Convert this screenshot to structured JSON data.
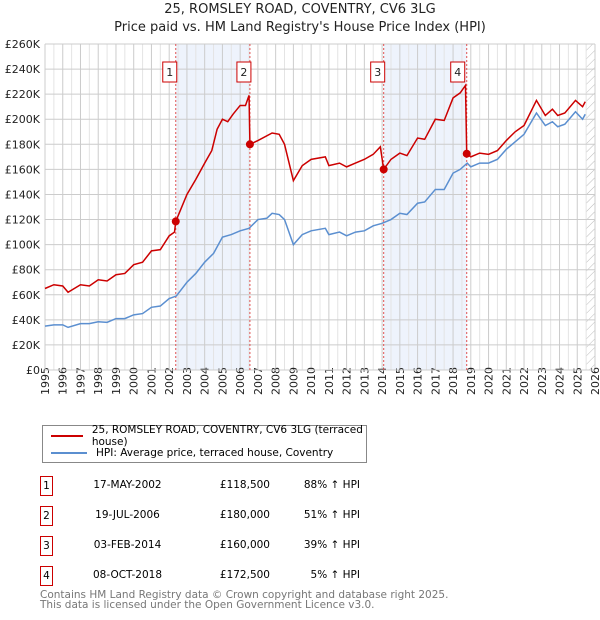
{
  "chart_data": {
    "type": "line",
    "title": "25, ROMSLEY ROAD, COVENTRY, CV6 3LG",
    "subtitle": "Price paid vs. HM Land Registry's House Price Index (HPI)",
    "xlim": [
      1995,
      2026
    ],
    "ylim": [
      0,
      260000
    ],
    "x_ticks": [
      "1995",
      "1996",
      "1997",
      "1998",
      "1999",
      "2000",
      "2001",
      "2002",
      "2003",
      "2004",
      "2005",
      "2006",
      "2007",
      "2008",
      "2009",
      "2010",
      "2011",
      "2012",
      "2013",
      "2014",
      "2015",
      "2016",
      "2017",
      "2018",
      "2019",
      "2020",
      "2021",
      "2022",
      "2023",
      "2024",
      "2025",
      "2026"
    ],
    "y_ticks": [
      "£0",
      "£20K",
      "£40K",
      "£60K",
      "£80K",
      "£100K",
      "£120K",
      "£140K",
      "£160K",
      "£180K",
      "£200K",
      "£220K",
      "£240K",
      "£260K"
    ],
    "grid": true,
    "series": [
      {
        "name": "25, ROMSLEY ROAD, COVENTRY, CV6 3LG (terraced house)",
        "color": "#cc0000",
        "points": [
          [
            1995,
            65
          ],
          [
            1995.5,
            68
          ],
          [
            1996,
            67
          ],
          [
            1996.3,
            62
          ],
          [
            1997,
            68
          ],
          [
            1997.5,
            67
          ],
          [
            1998,
            72
          ],
          [
            1998.5,
            71
          ],
          [
            1999,
            76
          ],
          [
            1999.5,
            77
          ],
          [
            2000,
            84
          ],
          [
            2000.5,
            86
          ],
          [
            2001,
            95
          ],
          [
            2001.5,
            96
          ],
          [
            2002,
            107
          ],
          [
            2002.3,
            110
          ],
          [
            2002.37,
            118.5
          ],
          [
            2003,
            140
          ],
          [
            2003.5,
            152
          ],
          [
            2004,
            165
          ],
          [
            2004.4,
            175
          ],
          [
            2004.7,
            192
          ],
          [
            2005,
            200
          ],
          [
            2005.3,
            198
          ],
          [
            2005.6,
            204
          ],
          [
            2006,
            211
          ],
          [
            2006.3,
            211
          ],
          [
            2006.5,
            219
          ],
          [
            2006.55,
            180
          ],
          [
            2007,
            183
          ],
          [
            2007.8,
            189
          ],
          [
            2008.2,
            188
          ],
          [
            2008.5,
            180
          ],
          [
            2009,
            151
          ],
          [
            2009.5,
            163
          ],
          [
            2010,
            168
          ],
          [
            2010.8,
            170
          ],
          [
            2011,
            163
          ],
          [
            2011.6,
            165
          ],
          [
            2012,
            162
          ],
          [
            2012.5,
            165
          ],
          [
            2013,
            168
          ],
          [
            2013.5,
            172
          ],
          [
            2013.9,
            178
          ],
          [
            2014.09,
            160
          ],
          [
            2014.5,
            168
          ],
          [
            2015,
            173
          ],
          [
            2015.4,
            171
          ],
          [
            2016,
            185
          ],
          [
            2016.4,
            184
          ],
          [
            2017,
            200
          ],
          [
            2017.5,
            199
          ],
          [
            2018,
            217
          ],
          [
            2018.4,
            221
          ],
          [
            2018.7,
            227
          ],
          [
            2018.77,
            172.5
          ],
          [
            2019,
            170
          ],
          [
            2019.5,
            173
          ],
          [
            2020,
            172
          ],
          [
            2020.5,
            175
          ],
          [
            2021,
            183
          ],
          [
            2021.5,
            190
          ],
          [
            2022,
            195
          ],
          [
            2022.7,
            215
          ],
          [
            2023.2,
            203
          ],
          [
            2023.6,
            208
          ],
          [
            2023.9,
            203
          ],
          [
            2024.3,
            205
          ],
          [
            2024.9,
            215
          ],
          [
            2025.3,
            210
          ],
          [
            2025.45,
            214
          ]
        ]
      },
      {
        "name": "HPI: Average price, terraced house, Coventry",
        "color": "#5b8fd0",
        "points": [
          [
            1995,
            35
          ],
          [
            1995.5,
            36
          ],
          [
            1996,
            36
          ],
          [
            1996.3,
            34
          ],
          [
            1997,
            37
          ],
          [
            1997.5,
            37
          ],
          [
            1998,
            38.5
          ],
          [
            1998.5,
            38
          ],
          [
            1999,
            41
          ],
          [
            1999.5,
            41
          ],
          [
            2000,
            44
          ],
          [
            2000.5,
            45
          ],
          [
            2001,
            50
          ],
          [
            2001.5,
            51
          ],
          [
            2002,
            57
          ],
          [
            2002.4,
            59
          ],
          [
            2003,
            70
          ],
          [
            2003.5,
            77
          ],
          [
            2004,
            86
          ],
          [
            2004.5,
            93
          ],
          [
            2005,
            106
          ],
          [
            2005.5,
            108
          ],
          [
            2006,
            111
          ],
          [
            2006.5,
            113
          ],
          [
            2007,
            120
          ],
          [
            2007.5,
            121
          ],
          [
            2007.8,
            125
          ],
          [
            2008.2,
            124
          ],
          [
            2008.5,
            120
          ],
          [
            2009,
            100
          ],
          [
            2009.5,
            108
          ],
          [
            2010,
            111
          ],
          [
            2010.8,
            113
          ],
          [
            2011,
            108
          ],
          [
            2011.6,
            110
          ],
          [
            2012,
            107
          ],
          [
            2012.5,
            110
          ],
          [
            2013,
            111
          ],
          [
            2013.5,
            115
          ],
          [
            2014,
            117
          ],
          [
            2014.5,
            120
          ],
          [
            2015,
            125
          ],
          [
            2015.4,
            124
          ],
          [
            2016,
            133
          ],
          [
            2016.4,
            134
          ],
          [
            2017,
            144
          ],
          [
            2017.5,
            144
          ],
          [
            2018,
            157
          ],
          [
            2018.4,
            160
          ],
          [
            2018.8,
            165
          ],
          [
            2019,
            162
          ],
          [
            2019.5,
            165
          ],
          [
            2020,
            165
          ],
          [
            2020.5,
            168
          ],
          [
            2021,
            176
          ],
          [
            2021.5,
            182
          ],
          [
            2022,
            188
          ],
          [
            2022.7,
            205
          ],
          [
            2023.2,
            195
          ],
          [
            2023.6,
            198
          ],
          [
            2023.9,
            194
          ],
          [
            2024.3,
            196
          ],
          [
            2024.9,
            206
          ],
          [
            2025.3,
            200
          ],
          [
            2025.45,
            204
          ]
        ]
      }
    ],
    "sales": [
      {
        "label": "1",
        "x": 2002.37,
        "y": 118.5
      },
      {
        "label": "2",
        "x": 2006.55,
        "y": 180
      },
      {
        "label": "3",
        "x": 2014.09,
        "y": 160
      },
      {
        "label": "4",
        "x": 2018.77,
        "y": 172.5
      }
    ],
    "shaded_ranges": [
      [
        2002.37,
        2006.55
      ],
      [
        2014.09,
        2018.77
      ]
    ],
    "forecast_from": 2025.5,
    "legend_placement": "below"
  },
  "legend": {
    "red": "25, ROMSLEY ROAD, COVENTRY, CV6 3LG (terraced house)",
    "blue": "HPI: Average price, terraced house, Coventry"
  },
  "table": [
    {
      "n": "1",
      "date": "17-MAY-2002",
      "price": "£118,500",
      "hpi": "88% ↑ HPI"
    },
    {
      "n": "2",
      "date": "19-JUL-2006",
      "price": "£180,000",
      "hpi": "51% ↑ HPI"
    },
    {
      "n": "3",
      "date": "03-FEB-2014",
      "price": "£160,000",
      "hpi": "39% ↑ HPI"
    },
    {
      "n": "4",
      "date": "08-OCT-2018",
      "price": "£172,500",
      "hpi": "5% ↑ HPI"
    }
  ],
  "footer": {
    "line1": "Contains HM Land Registry data © Crown copyright and database right 2025.",
    "line2": "This data is licensed under the Open Government Licence v3.0."
  }
}
